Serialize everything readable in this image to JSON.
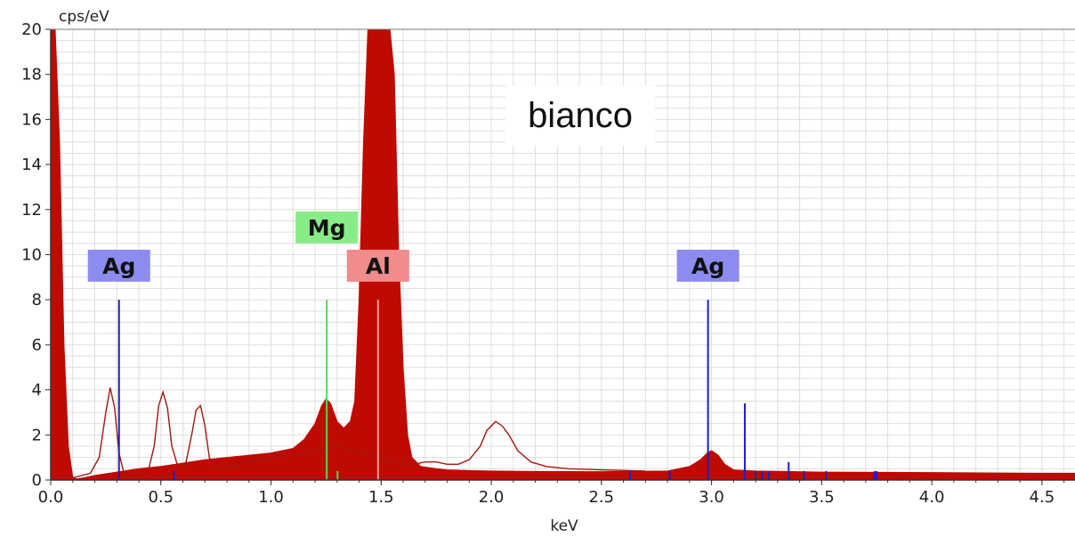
{
  "chart_data": {
    "type": "area",
    "title": "",
    "ylabel": "cps/eV",
    "xlabel": "keV",
    "xlim": [
      0.0,
      4.65
    ],
    "ylim": [
      0,
      20
    ],
    "x_ticks": [
      "0.0",
      "0.5",
      "1.0",
      "1.5",
      "2.0",
      "2.5",
      "3.0",
      "3.5",
      "4.0",
      "4.5"
    ],
    "y_ticks": [
      "0",
      "2",
      "4",
      "6",
      "8",
      "10",
      "12",
      "14",
      "16",
      "18",
      "20"
    ],
    "grid": true,
    "colors": {
      "spectrum_fill": "#bf0a00",
      "reference_outline": "#a01810",
      "ag": "#1e1ec8",
      "ag_label_bg": "#8c8cf0",
      "mg": "#50dc50",
      "mg_label_bg": "#88ec88",
      "al": "#f0a0a0",
      "al_label_bg": "#f08c8c",
      "grid": "#dedede"
    },
    "series": [
      {
        "x": [
          0.0,
          0.02,
          0.04,
          0.06,
          0.08,
          0.1,
          0.12,
          0.15,
          0.2,
          0.3,
          0.4,
          0.5,
          0.6,
          0.7,
          0.8,
          0.9,
          1.0,
          1.05,
          1.1,
          1.15,
          1.2,
          1.23,
          1.25,
          1.27,
          1.3,
          1.33,
          1.36,
          1.38,
          1.4,
          1.42,
          1.44,
          1.46,
          1.48,
          1.5,
          1.52,
          1.54,
          1.56,
          1.58,
          1.6,
          1.62,
          1.64,
          1.68,
          1.75,
          1.8,
          1.9,
          2.0,
          2.2,
          2.5,
          2.8,
          2.9,
          2.95,
          2.98,
          3.0,
          3.03,
          3.06,
          3.1,
          3.2,
          3.5,
          4.0,
          4.5,
          4.65
        ],
        "y": [
          20,
          20,
          15,
          6,
          1.5,
          0.1,
          0.05,
          0.1,
          0.2,
          0.35,
          0.5,
          0.6,
          0.75,
          0.9,
          1.0,
          1.1,
          1.2,
          1.3,
          1.4,
          1.8,
          2.5,
          3.3,
          3.6,
          3.4,
          2.6,
          2.3,
          2.6,
          3.5,
          8,
          15,
          20,
          20,
          20,
          20,
          20,
          20,
          18,
          10,
          5,
          2,
          1,
          0.6,
          0.5,
          0.45,
          0.42,
          0.4,
          0.38,
          0.37,
          0.4,
          0.6,
          0.9,
          1.2,
          1.3,
          1.1,
          0.7,
          0.45,
          0.4,
          0.35,
          0.33,
          0.3,
          0.3
        ]
      },
      {
        "x": [
          0.1,
          0.18,
          0.22,
          0.25,
          0.27,
          0.29,
          0.31,
          0.33,
          0.36,
          0.4,
          0.44,
          0.47,
          0.49,
          0.51,
          0.53,
          0.55,
          0.58,
          0.61,
          0.64,
          0.66,
          0.68,
          0.7,
          0.72,
          0.75,
          0.8,
          0.9,
          1.0,
          1.1,
          1.2,
          1.3,
          1.5,
          1.6,
          1.65,
          1.7,
          1.75,
          1.8,
          1.85,
          1.9,
          1.95,
          1.98,
          2.02,
          2.05,
          2.08,
          2.12,
          2.18,
          2.25,
          2.35,
          2.5,
          2.7
        ],
        "y": [
          0.1,
          0.3,
          1.0,
          3.0,
          4.1,
          3.2,
          1.2,
          0.4,
          0.2,
          0.2,
          0.3,
          1.5,
          3.3,
          3.9,
          3.2,
          1.5,
          0.5,
          0.6,
          2.0,
          3.1,
          3.3,
          2.4,
          1.0,
          0.5,
          0.6,
          0.8,
          1.0,
          1.1,
          1.3,
          1.5,
          1.0,
          0.7,
          0.7,
          0.8,
          0.8,
          0.7,
          0.7,
          0.9,
          1.5,
          2.2,
          2.6,
          2.4,
          2.0,
          1.3,
          0.8,
          0.6,
          0.5,
          0.45,
          0.4
        ]
      }
    ],
    "lines": [
      {
        "x": 0.31,
        "y": 8,
        "c": "ag"
      },
      {
        "x": 1.253,
        "y": 8,
        "c": "mg"
      },
      {
        "x": 1.486,
        "y": 8,
        "c": "al"
      },
      {
        "x": 2.984,
        "y": 8,
        "c": "ag"
      },
      {
        "x": 3.151,
        "y": 3.4,
        "c": "ag"
      },
      {
        "x": 3.35,
        "y": 0.8,
        "c": "ag"
      },
      {
        "x": 1.302,
        "y": 0.4,
        "c": "mg"
      },
      {
        "x": 0.56,
        "y": 0.4,
        "c": "ag"
      },
      {
        "x": 2.63,
        "y": 0.4,
        "c": "ag"
      },
      {
        "x": 2.81,
        "y": 0.4,
        "c": "ag"
      },
      {
        "x": 3.2,
        "y": 0.4,
        "c": "ag"
      },
      {
        "x": 3.23,
        "y": 0.4,
        "c": "ag"
      },
      {
        "x": 3.26,
        "y": 0.4,
        "c": "ag"
      },
      {
        "x": 3.42,
        "y": 0.4,
        "c": "ag"
      },
      {
        "x": 3.52,
        "y": 0.4,
        "c": "ag"
      },
      {
        "x": 3.74,
        "y": 0.4,
        "c": "ag"
      },
      {
        "x": 3.75,
        "y": 0.4,
        "c": "ag"
      }
    ],
    "element_labels": [
      {
        "text": "Ag",
        "x": 0.31,
        "y": 8.8,
        "c": "ag"
      },
      {
        "text": "Mg",
        "x": 1.253,
        "y": 10.5,
        "c": "mg"
      },
      {
        "text": "Al",
        "x": 1.486,
        "y": 8.8,
        "c": "al"
      },
      {
        "text": "Ag",
        "x": 2.984,
        "y": 8.8,
        "c": "ag"
      }
    ],
    "annotation": "bianco"
  }
}
